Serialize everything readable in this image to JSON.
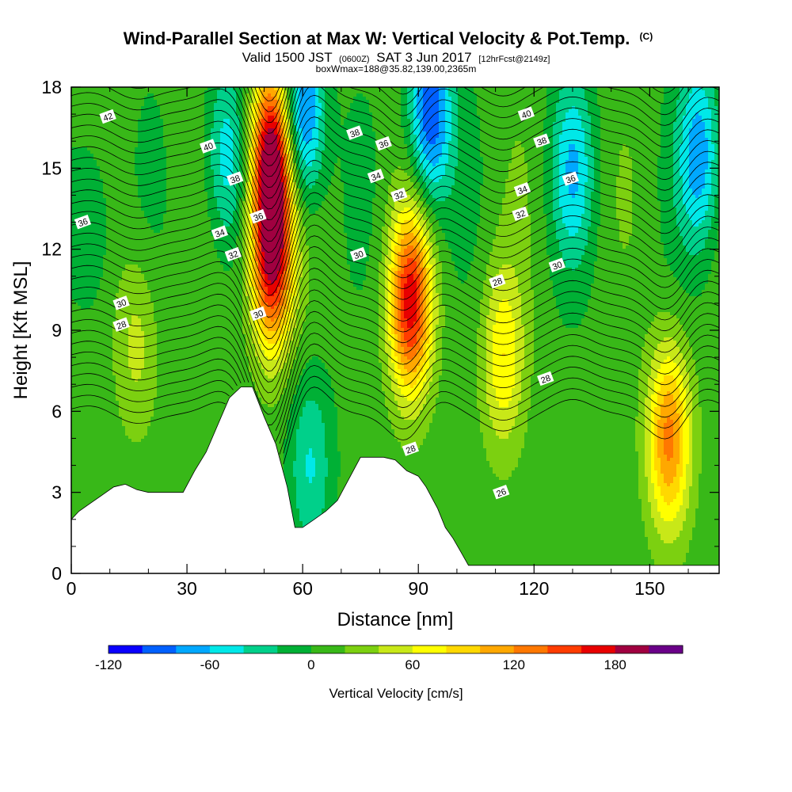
{
  "chart_data": {
    "type": "heatmap",
    "title": "Wind-Parallel Section at Max W: Vertical Velocity & Pot.Temp.",
    "title_units": "(C)",
    "subtitle_prefix": "Valid 1500 JST",
    "subtitle_small1": "(0600Z)",
    "subtitle_mid": "SAT 3 Jun 2017",
    "subtitle_small2": "[12hrFcst@2149z]",
    "subtitle2": "boxWmax=188@35.82,139.00,2365m",
    "xlabel": "Distance [nm]",
    "ylabel": "Height [Kft MSL]",
    "xlim": [
      0,
      168
    ],
    "ylim": [
      0,
      18
    ],
    "x_ticks": [
      "0",
      "30",
      "60",
      "90",
      "120",
      "150"
    ],
    "y_ticks": [
      "0",
      "3",
      "6",
      "9",
      "12",
      "15",
      "18"
    ],
    "colorbar": {
      "label": "Vertical Velocity [cm/s]",
      "levels": [
        -120,
        -100,
        -80,
        -60,
        -40,
        -20,
        0,
        20,
        40,
        60,
        80,
        100,
        120,
        140,
        160,
        180,
        200
      ],
      "tick_labels": [
        "-120",
        "-60",
        "0",
        "60",
        "120",
        "180"
      ],
      "colors": [
        "#0a00ff",
        "#0060ff",
        "#00a8ff",
        "#00e8e8",
        "#00d08a",
        "#00b035",
        "#38b818",
        "#7cd010",
        "#c8e818",
        "#ffff00",
        "#ffd800",
        "#ffa800",
        "#ff7800",
        "#ff3c00",
        "#e80000",
        "#a00040",
        "#6a0088"
      ]
    },
    "terrain_kft": [
      [
        0,
        2.0
      ],
      [
        2,
        2.3
      ],
      [
        5,
        2.6
      ],
      [
        8,
        2.9
      ],
      [
        11,
        3.2
      ],
      [
        14,
        3.3
      ],
      [
        17,
        3.1
      ],
      [
        20,
        3.0
      ],
      [
        23,
        3.0
      ],
      [
        26,
        3.0
      ],
      [
        29,
        3.0
      ],
      [
        32,
        3.8
      ],
      [
        35,
        4.5
      ],
      [
        38,
        5.5
      ],
      [
        41,
        6.5
      ],
      [
        44,
        6.9
      ],
      [
        47,
        6.9
      ],
      [
        50,
        5.8
      ],
      [
        53,
        4.8
      ],
      [
        56,
        3.2
      ],
      [
        58,
        1.7
      ],
      [
        60,
        1.7
      ],
      [
        63,
        2.0
      ],
      [
        66,
        2.3
      ],
      [
        69,
        2.7
      ],
      [
        72,
        3.5
      ],
      [
        75,
        4.3
      ],
      [
        78,
        4.3
      ],
      [
        81,
        4.3
      ],
      [
        84,
        4.2
      ],
      [
        87,
        3.8
      ],
      [
        90,
        3.6
      ],
      [
        92,
        3.2
      ],
      [
        95,
        2.4
      ],
      [
        97,
        1.7
      ],
      [
        99,
        1.3
      ],
      [
        101,
        0.8
      ],
      [
        103,
        0.3
      ],
      [
        168,
        0.3
      ]
    ],
    "vertical_velocity_features_cm_s": [
      {
        "x": 52,
        "y": 15.5,
        "peak": 190
      },
      {
        "x": 52,
        "y": 11.5,
        "peak": 160
      },
      {
        "x": 88,
        "y": 10.0,
        "peak": 160
      },
      {
        "x": 112,
        "y": 8.0,
        "peak": 70
      },
      {
        "x": 155,
        "y": 5.0,
        "peak": 120
      },
      {
        "x": 17,
        "y": 8.5,
        "peak": 40
      },
      {
        "x": 40,
        "y": 15.5,
        "peak": -60
      },
      {
        "x": 60,
        "y": 17.0,
        "peak": -110
      },
      {
        "x": 93,
        "y": 17.0,
        "peak": -110
      },
      {
        "x": 62,
        "y": 4.0,
        "peak": -50
      },
      {
        "x": 130,
        "y": 15.0,
        "peak": -60
      },
      {
        "x": 163,
        "y": 15.5,
        "peak": -80
      },
      {
        "x": 5,
        "y": 13.0,
        "peak": -35
      }
    ],
    "potential_temperature_labels": [
      {
        "text": "42",
        "x": 9.5,
        "y": 16.9
      },
      {
        "text": "40",
        "x": 35.5,
        "y": 15.8
      },
      {
        "text": "38",
        "x": 42.5,
        "y": 14.6
      },
      {
        "text": "36",
        "x": 48.5,
        "y": 13.2
      },
      {
        "text": "36",
        "x": 3,
        "y": 13.0
      },
      {
        "text": "34",
        "x": 38.5,
        "y": 12.6
      },
      {
        "text": "32",
        "x": 42,
        "y": 11.8
      },
      {
        "text": "30",
        "x": 13,
        "y": 10.0
      },
      {
        "text": "28",
        "x": 13,
        "y": 9.2
      },
      {
        "text": "30",
        "x": 48.5,
        "y": 9.6
      },
      {
        "text": "38",
        "x": 73.5,
        "y": 16.3
      },
      {
        "text": "36",
        "x": 81,
        "y": 15.9
      },
      {
        "text": "34",
        "x": 79,
        "y": 14.7
      },
      {
        "text": "32",
        "x": 85,
        "y": 14.0
      },
      {
        "text": "30",
        "x": 74.5,
        "y": 11.8
      },
      {
        "text": "40",
        "x": 118,
        "y": 17.0
      },
      {
        "text": "38",
        "x": 122,
        "y": 16.0
      },
      {
        "text": "36",
        "x": 129.5,
        "y": 14.6
      },
      {
        "text": "34",
        "x": 117,
        "y": 14.2
      },
      {
        "text": "32",
        "x": 116.5,
        "y": 13.3
      },
      {
        "text": "30",
        "x": 126,
        "y": 11.4
      },
      {
        "text": "28",
        "x": 110.5,
        "y": 10.8
      },
      {
        "text": "28",
        "x": 123,
        "y": 7.2
      },
      {
        "text": "28",
        "x": 88,
        "y": 4.6
      },
      {
        "text": "26",
        "x": 111.5,
        "y": 3.0
      }
    ]
  },
  "colors": {
    "terrain": "#ffffff",
    "contour": "#000000",
    "frame": "#000000"
  }
}
